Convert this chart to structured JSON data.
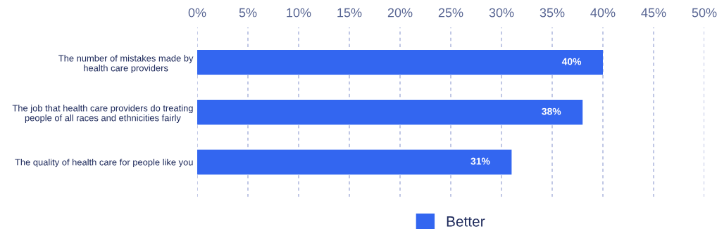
{
  "chart_data": {
    "type": "bar",
    "orientation": "horizontal",
    "categories": [
      "The number of mistakes made by\nhealth care providers",
      "The job that health care providers do treating\npeople of all races and ethnicities fairly",
      "The quality of health care for people like you"
    ],
    "series": [
      {
        "name": "Better",
        "color": "#3366f0",
        "values": [
          40,
          38,
          31
        ],
        "value_labels": [
          "40%",
          "38%",
          "31%"
        ]
      }
    ],
    "xlim": [
      0,
      50
    ],
    "xticks": [
      {
        "value": 0,
        "label": "0%"
      },
      {
        "value": 5,
        "label": "5%"
      },
      {
        "value": 10,
        "label": "10%"
      },
      {
        "value": 15,
        "label": "15%"
      },
      {
        "value": 20,
        "label": "20%"
      },
      {
        "value": 25,
        "label": "25%"
      },
      {
        "value": 30,
        "label": "30%"
      },
      {
        "value": 35,
        "label": "35%"
      },
      {
        "value": 40,
        "label": "40%"
      },
      {
        "value": 45,
        "label": "45%"
      },
      {
        "value": 50,
        "label": "50%"
      }
    ],
    "grid": "x",
    "legend": "bottom"
  }
}
